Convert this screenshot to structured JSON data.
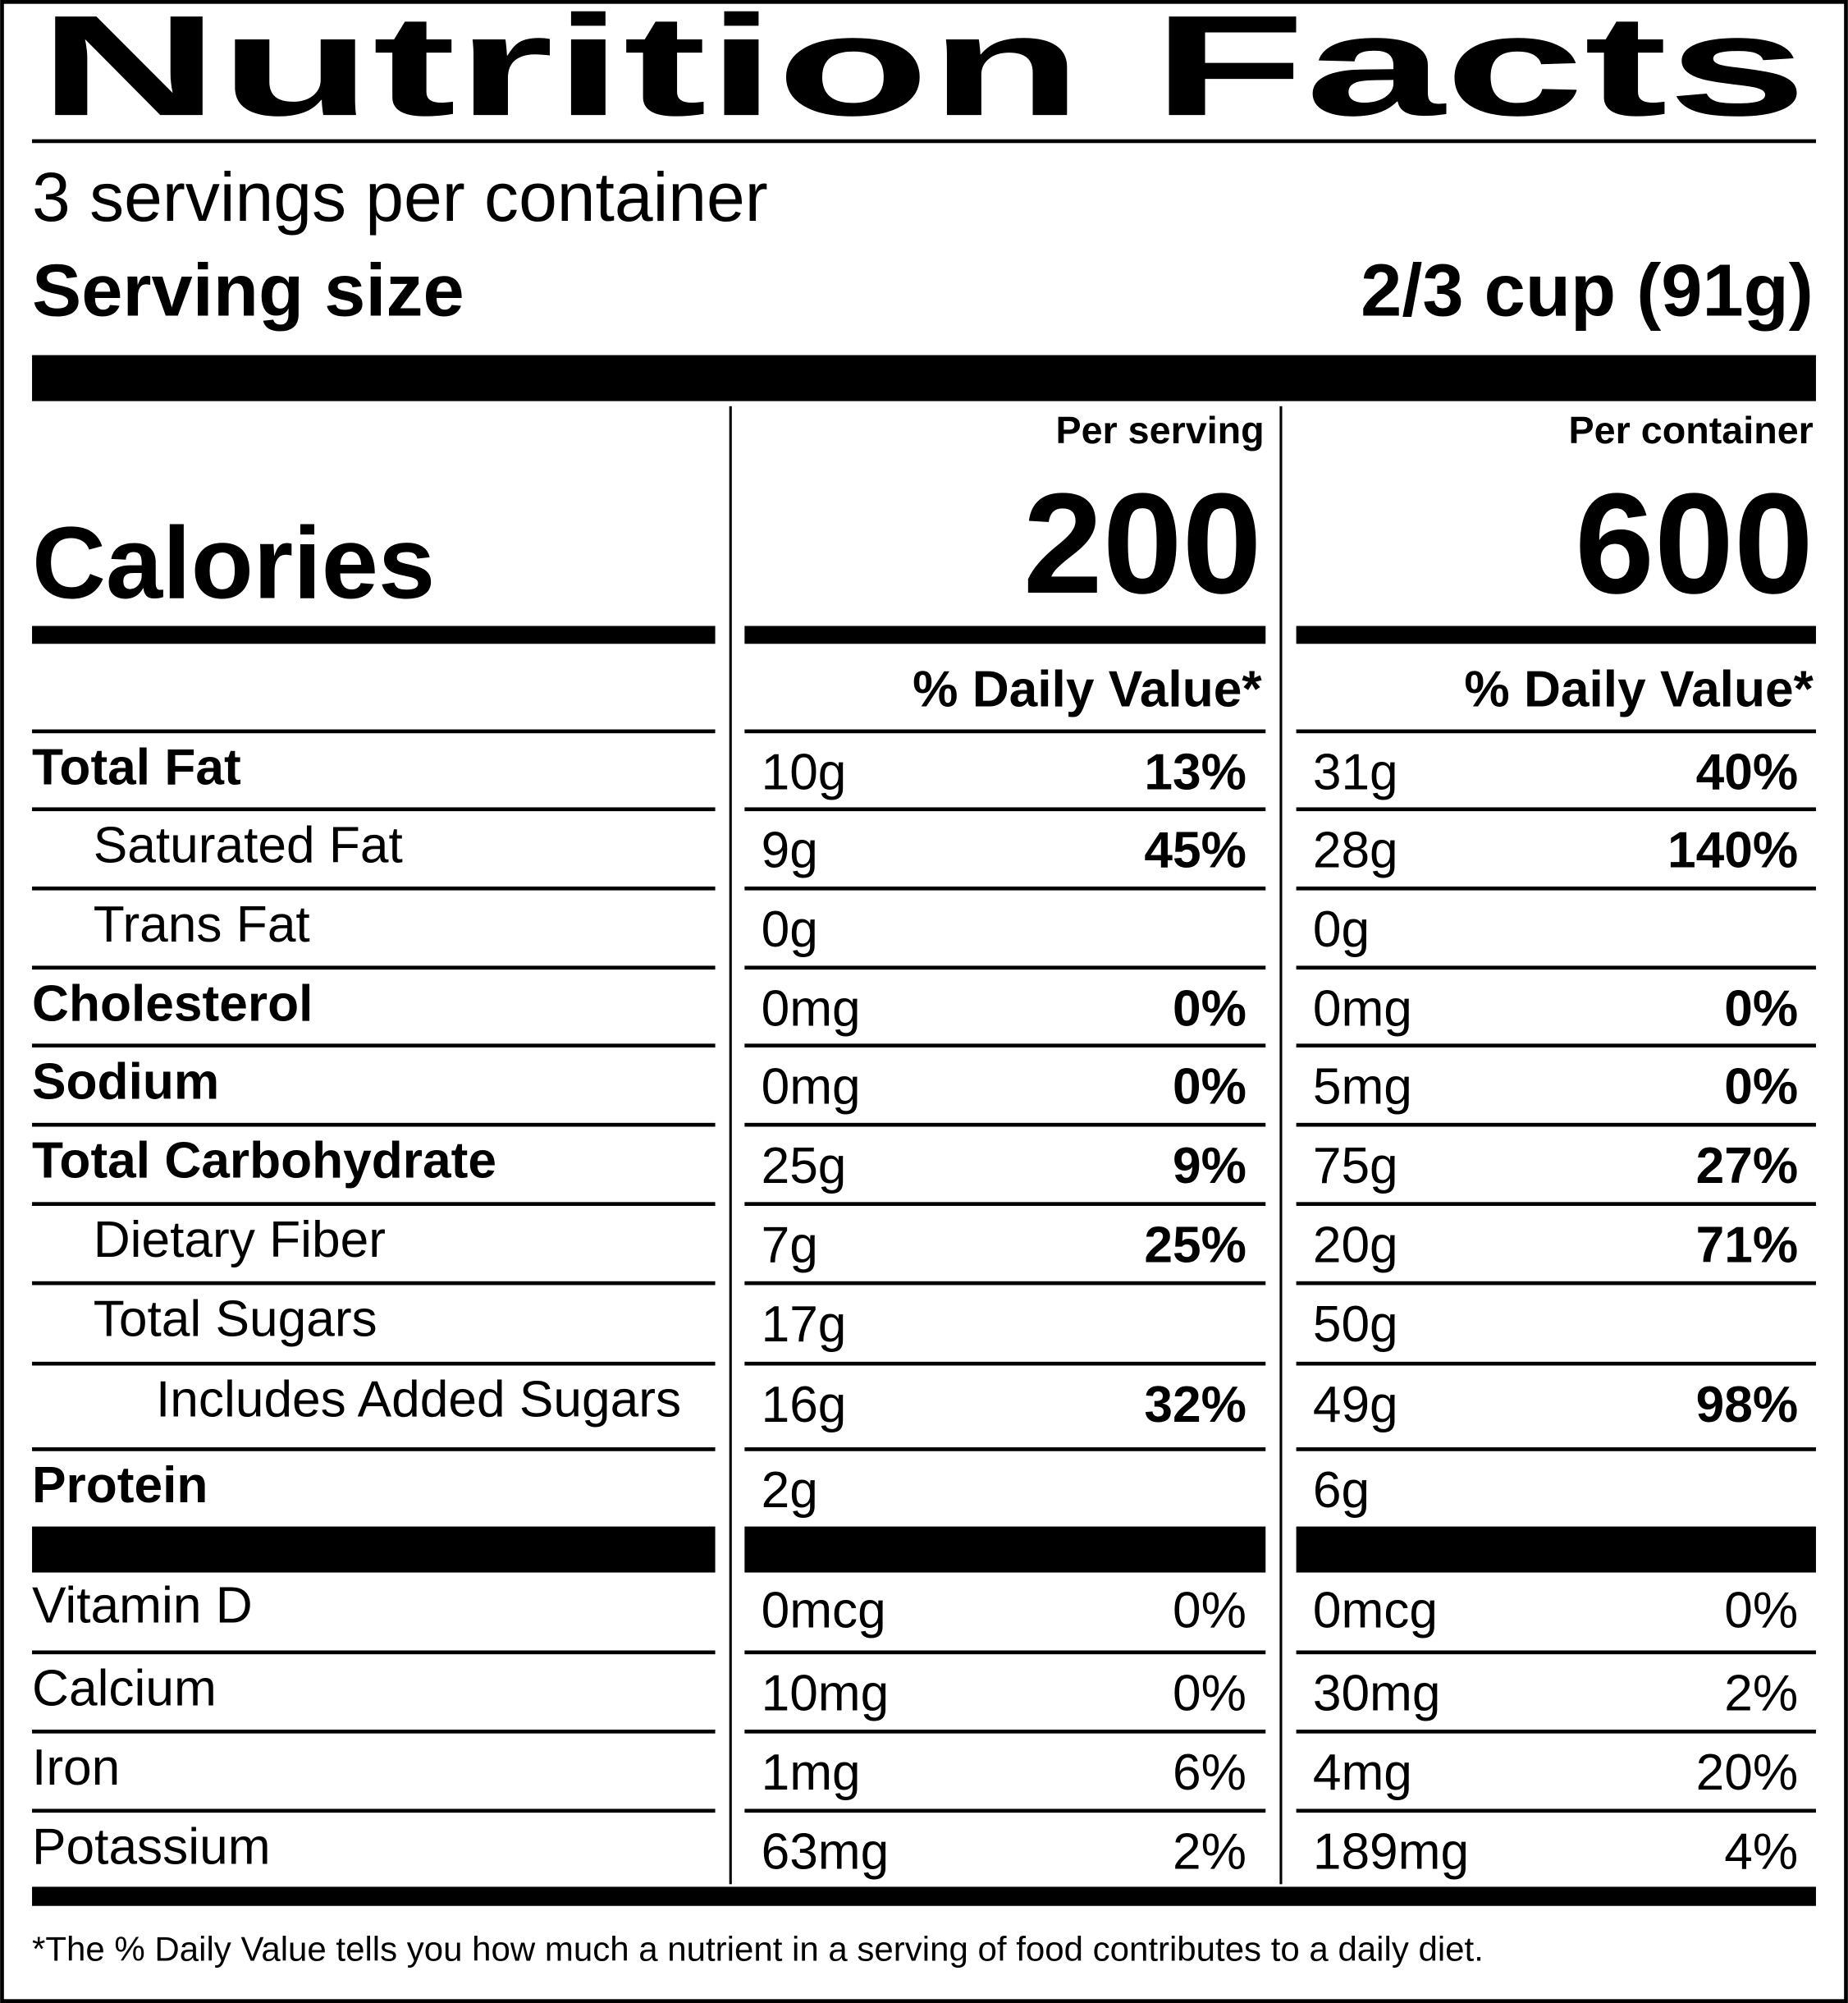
{
  "header": {
    "title": "Nutrition Facts",
    "servings": "3 servings per container",
    "serving_size_label": "Serving size",
    "serving_size_value": "2/3 cup (91g)"
  },
  "calories": {
    "label": "Calories",
    "per_serving_header": "Per serving",
    "per_container_header": "Per container",
    "per_serving": "200",
    "per_container": "600",
    "dv_header_serving": "% Daily Value*",
    "dv_header_container": "% Daily Value*"
  },
  "nutrients": [
    {
      "name": "Total Fat",
      "indent": 0,
      "bold": true,
      "serving_amount": "10g",
      "serving_dv": "13%",
      "container_amount": "31g",
      "container_dv": "40%"
    },
    {
      "name": "Saturated Fat",
      "indent": 1,
      "bold": false,
      "serving_amount": "9g",
      "serving_dv": "45%",
      "container_amount": "28g",
      "container_dv": "140%"
    },
    {
      "name": "Trans Fat",
      "indent": 1,
      "bold": false,
      "serving_amount": "0g",
      "serving_dv": null,
      "container_amount": "0g",
      "container_dv": null
    },
    {
      "name": "Cholesterol",
      "indent": 0,
      "bold": true,
      "serving_amount": "0mg",
      "serving_dv": "0%",
      "container_amount": "0mg",
      "container_dv": "0%"
    },
    {
      "name": "Sodium",
      "indent": 0,
      "bold": true,
      "serving_amount": "0mg",
      "serving_dv": "0%",
      "container_amount": "5mg",
      "container_dv": "0%"
    },
    {
      "name": "Total Carbohydrate",
      "indent": 0,
      "bold": true,
      "serving_amount": "25g",
      "serving_dv": "9%",
      "container_amount": "75g",
      "container_dv": "27%"
    },
    {
      "name": "Dietary Fiber",
      "indent": 1,
      "bold": false,
      "serving_amount": "7g",
      "serving_dv": "25%",
      "container_amount": "20g",
      "container_dv": "71%"
    },
    {
      "name": "Total Sugars",
      "indent": 1,
      "bold": false,
      "serving_amount": "17g",
      "serving_dv": null,
      "container_amount": "50g",
      "container_dv": null
    },
    {
      "name": "Includes Added Sugars",
      "indent": 2,
      "bold": false,
      "serving_amount": "16g",
      "serving_dv": "32%",
      "container_amount": "49g",
      "container_dv": "98%"
    },
    {
      "name": "Protein",
      "indent": 0,
      "bold": true,
      "serving_amount": "2g",
      "serving_dv": null,
      "container_amount": "6g",
      "container_dv": null
    }
  ],
  "vitamins": [
    {
      "name": "Vitamin D",
      "serving_amount": "0mcg",
      "serving_dv": "0%",
      "container_amount": "0mcg",
      "container_dv": "0%"
    },
    {
      "name": "Calcium",
      "serving_amount": "10mg",
      "serving_dv": "0%",
      "container_amount": "30mg",
      "container_dv": "2%"
    },
    {
      "name": "Iron",
      "serving_amount": "1mg",
      "serving_dv": "6%",
      "container_amount": "4mg",
      "container_dv": "20%"
    },
    {
      "name": "Potassium",
      "serving_amount": "63mg",
      "serving_dv": "2%",
      "container_amount": "189mg",
      "container_dv": "4%"
    }
  ],
  "footnote": "*The % Daily Value tells you how much a nutrient in a serving of food contributes to a daily diet."
}
